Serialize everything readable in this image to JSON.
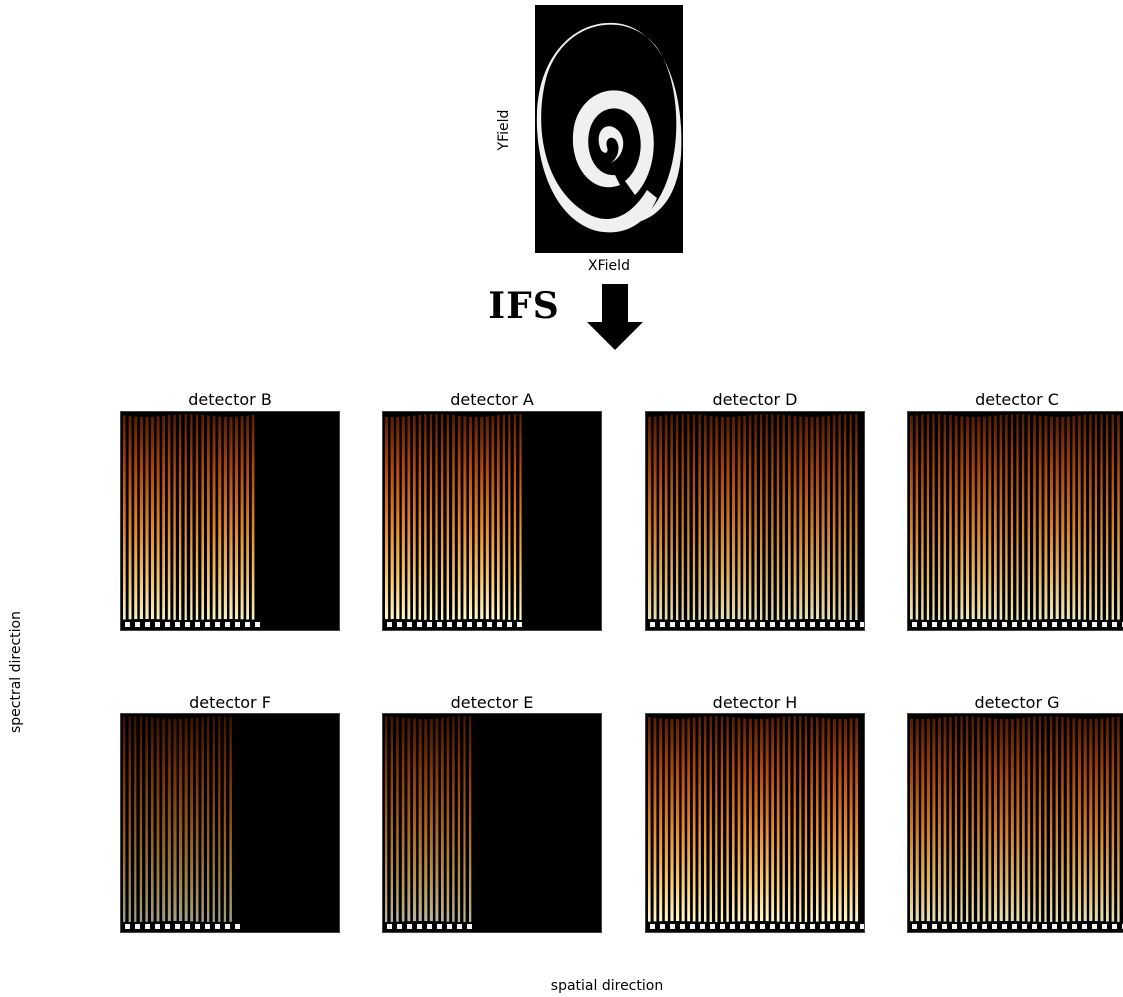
{
  "input_image": {
    "xlabel": "XField",
    "ylabel": "YField"
  },
  "process_label": "IFS",
  "detectors": [
    {
      "title": "detector B",
      "fill": 0.64,
      "brightness": 0.95
    },
    {
      "title": "detector A",
      "fill": 0.66,
      "brightness": 1.0
    },
    {
      "title": "detector D",
      "fill": 1.0,
      "brightness": 0.85
    },
    {
      "title": "detector C",
      "fill": 1.0,
      "brightness": 0.9
    },
    {
      "title": "detector F",
      "fill": 0.54,
      "brightness": 0.45
    },
    {
      "title": "detector E",
      "fill": 0.42,
      "brightness": 0.6
    },
    {
      "title": "detector H",
      "fill": 1.0,
      "brightness": 1.0
    },
    {
      "title": "detector G",
      "fill": 1.0,
      "brightness": 0.85
    }
  ],
  "axes": {
    "xlabel": "spatial direction",
    "ylabel": "spectral direction"
  },
  "colors": {
    "colormap": [
      "#000000",
      "#5a1d06",
      "#b4470c",
      "#e88a2a",
      "#f8c86a",
      "#fff8c8"
    ]
  }
}
